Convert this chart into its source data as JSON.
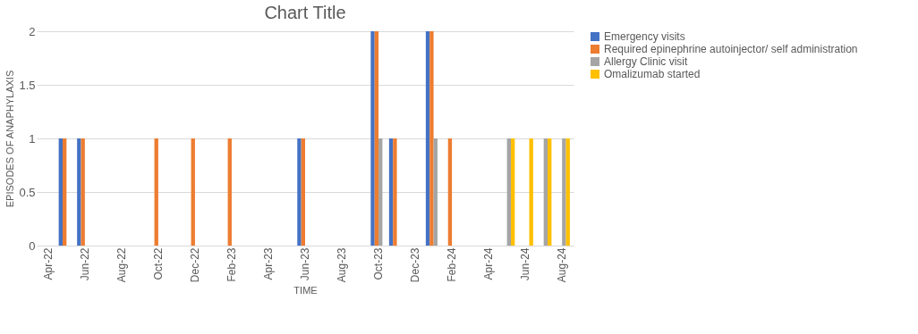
{
  "chart_data": {
    "type": "bar",
    "title": "Chart Title",
    "xlabel": "TIME",
    "ylabel": "EPISODES OF ANAPHYLAXIS",
    "categories": [
      "Apr-22",
      null,
      "Jun-22",
      null,
      "Aug-22",
      null,
      "Oct-22",
      null,
      "Dec-22",
      null,
      "Feb-23",
      null,
      "Apr-23",
      null,
      "Jun-23",
      null,
      "Aug-23",
      null,
      "Oct-23",
      null,
      "Dec-23",
      null,
      "Feb-24",
      null,
      "Apr-24",
      null,
      "Jun-24",
      null,
      "Aug-24"
    ],
    "series": [
      {
        "name": "Emergency visits",
        "color": "#4472c4",
        "values": [
          null,
          1,
          1,
          null,
          null,
          null,
          null,
          null,
          null,
          null,
          null,
          null,
          null,
          null,
          1,
          null,
          null,
          null,
          2,
          1,
          null,
          2,
          null,
          null,
          null,
          null,
          null,
          null,
          null
        ]
      },
      {
        "name": "Required epinephrine autoinjector/ self administration",
        "color": "#ed7d31",
        "values": [
          null,
          1,
          1,
          null,
          null,
          null,
          1,
          null,
          1,
          null,
          1,
          null,
          null,
          null,
          1,
          null,
          null,
          null,
          2,
          1,
          null,
          2,
          1,
          null,
          null,
          null,
          null,
          null,
          null
        ]
      },
      {
        "name": "Allergy Clinic visit",
        "color": "#a5a5a5",
        "values": [
          null,
          null,
          null,
          null,
          null,
          null,
          null,
          null,
          null,
          null,
          null,
          null,
          null,
          null,
          null,
          null,
          null,
          null,
          1,
          null,
          null,
          1,
          null,
          null,
          null,
          1,
          null,
          1,
          1
        ]
      },
      {
        "name": "Omalizumab started",
        "color": "#ffc000",
        "values": [
          null,
          null,
          null,
          null,
          null,
          null,
          null,
          null,
          null,
          null,
          null,
          null,
          null,
          null,
          null,
          null,
          null,
          null,
          null,
          null,
          null,
          null,
          null,
          null,
          null,
          1,
          1,
          1,
          1
        ]
      }
    ],
    "ylim": [
      0,
      2
    ],
    "yticks": [
      0,
      0.5,
      1,
      1.5,
      2
    ],
    "grid": "y",
    "legend": "right"
  }
}
